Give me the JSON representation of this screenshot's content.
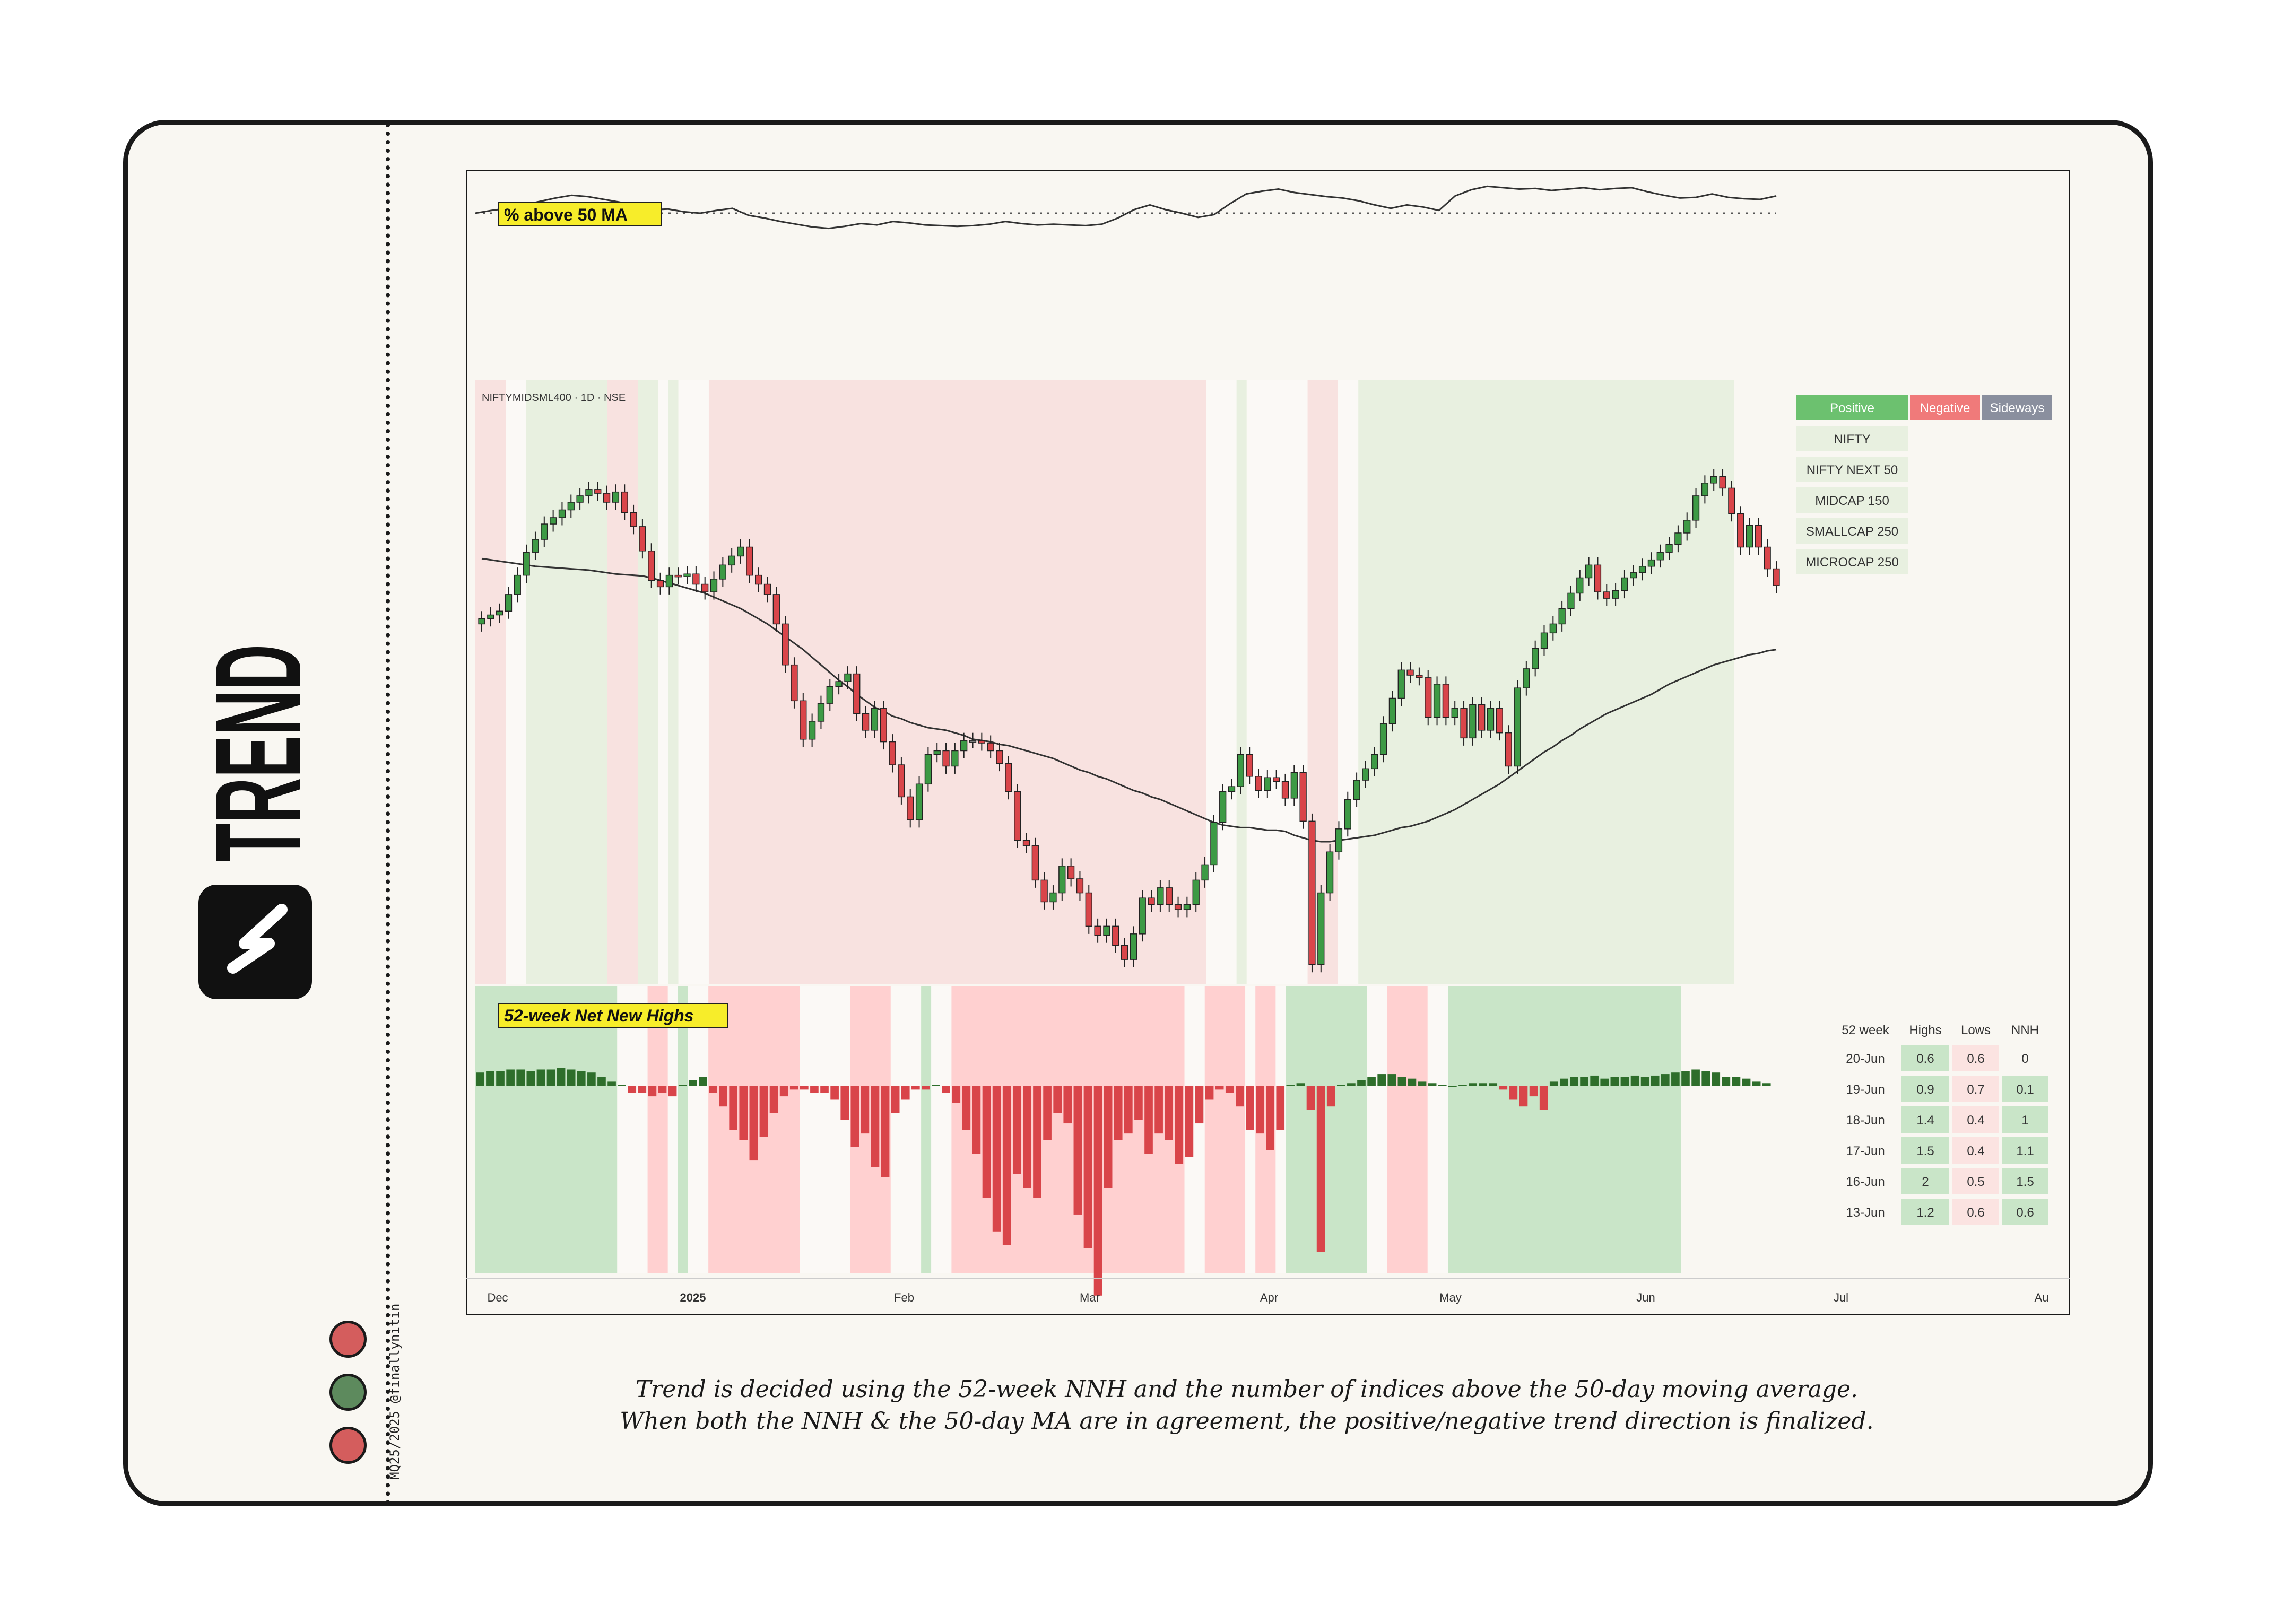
{
  "brand": {
    "word": "TREND"
  },
  "credit": "MQ25/2025 @finallynitin",
  "colors": {
    "up": "#3d9a45",
    "down": "#d9454a",
    "flat": "#ffffff",
    "bg_positive": "#e8f0e0",
    "bg_negative": "#f8e2e0",
    "nnh_positive": "#c9e5c8",
    "nnh_negative": "#ffd0d0",
    "nnh_bar_up": "#2e6e2b",
    "nnh_bar_down": "#d9454a",
    "dots": [
      "#d45d5d",
      "#5d8a5d",
      "#d45d5d"
    ]
  },
  "caption": {
    "line1": "Trend is decided using the 52-week NNH and the number of indices above the 50-day moving average.",
    "line2": "When both the NNH & the 50-day MA are in agreement, the positive/negative trend direction is finalized."
  },
  "chart_data": [
    {
      "type": "line",
      "title": "% above 50 MA",
      "y_domain": [
        0,
        100
      ],
      "reference_line": 50,
      "values": [
        50,
        54,
        57,
        62,
        67,
        72,
        76,
        74,
        70,
        66,
        60,
        55,
        56,
        52,
        50,
        54,
        57,
        47,
        43,
        38,
        34,
        30,
        28,
        31,
        35,
        33,
        38,
        36,
        33,
        32,
        31,
        32,
        34,
        38,
        35,
        33,
        34,
        33,
        32,
        34,
        43,
        55,
        62,
        55,
        50,
        44,
        48,
        64,
        78,
        82,
        85,
        80,
        77,
        74,
        72,
        68,
        62,
        57,
        62,
        59,
        54,
        75,
        84,
        89,
        87,
        85,
        86,
        83,
        85,
        87,
        84,
        86,
        87,
        81,
        76,
        72,
        73,
        78,
        73,
        71,
        70,
        75
      ]
    },
    {
      "type": "candlestick",
      "symbol": "NIFTYMIDSML400 · 1D · NSE",
      "x_tick_labels": [
        "Dec",
        "2025",
        "Feb",
        "Mar",
        "Apr",
        "May",
        "Jun",
        "Jul",
        "Au"
      ],
      "y_domain": [
        15800,
        20500
      ],
      "close": [
        18650,
        18680,
        18710,
        18840,
        18990,
        19170,
        19270,
        19390,
        19440,
        19500,
        19560,
        19610,
        19660,
        19630,
        19560,
        19640,
        19480,
        19370,
        19180,
        18950,
        18900,
        18990,
        18980,
        19000,
        18920,
        18860,
        18960,
        19070,
        19140,
        19210,
        18990,
        18920,
        18840,
        18610,
        18290,
        18010,
        17710,
        17850,
        17990,
        18120,
        18160,
        18220,
        17910,
        17780,
        17950,
        17690,
        17510,
        17260,
        17080,
        17360,
        17590,
        17620,
        17500,
        17620,
        17700,
        17700,
        17680,
        17620,
        17520,
        17300,
        16920,
        16880,
        16610,
        16440,
        16510,
        16720,
        16620,
        16510,
        16250,
        16180,
        16250,
        16100,
        15990,
        16190,
        16470,
        16420,
        16550,
        16420,
        16380,
        16420,
        16610,
        16730,
        17060,
        17300,
        17340,
        17590,
        17420,
        17310,
        17410,
        17380,
        17250,
        17450,
        17070,
        15950,
        16510,
        16830,
        17010,
        17240,
        17390,
        17480,
        17590,
        17830,
        18030,
        18250,
        18210,
        18190,
        17880,
        18140,
        17880,
        17950,
        17720,
        17980,
        17780,
        17950,
        17760,
        17500,
        18110,
        18260,
        18420,
        18540,
        18610,
        18730,
        18850,
        18970,
        19070,
        18860,
        18810,
        18870,
        18970,
        19010,
        19060,
        19110,
        19170,
        19230,
        19320,
        19420,
        19610,
        19710,
        19760,
        19670,
        19470,
        19210,
        19380,
        19210,
        19040,
        18910
      ],
      "moving_average_50": [
        19120,
        19110,
        19100,
        19090,
        19080,
        19070,
        19060,
        19055,
        19050,
        19045,
        19040,
        19035,
        19030,
        19020,
        19010,
        19000,
        18995,
        18990,
        18985,
        18970,
        18950,
        18930,
        18910,
        18890,
        18870,
        18850,
        18820,
        18790,
        18760,
        18730,
        18690,
        18650,
        18610,
        18560,
        18510,
        18460,
        18410,
        18350,
        18290,
        18230,
        18170,
        18120,
        18060,
        18010,
        17960,
        17930,
        17890,
        17870,
        17840,
        17820,
        17800,
        17790,
        17780,
        17760,
        17740,
        17710,
        17700,
        17690,
        17670,
        17660,
        17640,
        17620,
        17600,
        17580,
        17560,
        17530,
        17500,
        17470,
        17450,
        17420,
        17400,
        17370,
        17340,
        17310,
        17290,
        17260,
        17240,
        17210,
        17180,
        17150,
        17120,
        17090,
        17060,
        17040,
        17030,
        17020,
        17020,
        17010,
        17000,
        17000,
        16990,
        16960,
        16940,
        16920,
        16910,
        16910,
        16920,
        16930,
        16940,
        16950,
        16960,
        16980,
        17000,
        17020,
        17030,
        17050,
        17070,
        17100,
        17130,
        17160,
        17200,
        17240,
        17280,
        17320,
        17360,
        17410,
        17460,
        17510,
        17560,
        17610,
        17650,
        17700,
        17740,
        17790,
        17830,
        17870,
        17910,
        17940,
        17970,
        18000,
        18030,
        18060,
        18100,
        18140,
        18170,
        18200,
        18230,
        18260,
        18290,
        18310,
        18330,
        18350,
        18370,
        18380,
        18400,
        18410
      ],
      "regime_bands": [
        {
          "start": 0,
          "end": 3,
          "trend": "negative"
        },
        {
          "start": 3,
          "end": 5,
          "trend": "sideways"
        },
        {
          "start": 5,
          "end": 13,
          "trend": "positive"
        },
        {
          "start": 13,
          "end": 16,
          "trend": "negative"
        },
        {
          "start": 16,
          "end": 18,
          "trend": "positive"
        },
        {
          "start": 18,
          "end": 19,
          "trend": "sideways"
        },
        {
          "start": 19,
          "end": 20,
          "trend": "positive"
        },
        {
          "start": 20,
          "end": 23,
          "trend": "sideways"
        },
        {
          "start": 23,
          "end": 72,
          "trend": "negative"
        },
        {
          "start": 72,
          "end": 75,
          "trend": "sideways"
        },
        {
          "start": 75,
          "end": 76,
          "trend": "positive"
        },
        {
          "start": 76,
          "end": 82,
          "trend": "sideways"
        },
        {
          "start": 82,
          "end": 85,
          "trend": "negative"
        },
        {
          "start": 85,
          "end": 87,
          "trend": "sideways"
        },
        {
          "start": 87,
          "end": 124,
          "trend": "positive"
        }
      ],
      "legend": {
        "headers": [
          "Positive",
          "Negative",
          "Sideways"
        ],
        "header_colors": [
          "#6cc16f",
          "#f07a7a",
          "#8a8f9e"
        ],
        "indices": [
          {
            "name": "NIFTY",
            "trend": "positive"
          },
          {
            "name": "NIFTY NEXT 50",
            "trend": "positive"
          },
          {
            "name": "MIDCAP 150",
            "trend": "positive"
          },
          {
            "name": "SMALLCAP 250",
            "trend": "positive"
          },
          {
            "name": "MICROCAP 250",
            "trend": "positive"
          }
        ]
      }
    },
    {
      "type": "bar",
      "title": "52-week Net New Highs",
      "values": [
        0.9,
        1.0,
        1.0,
        1.1,
        1.1,
        1.0,
        1.1,
        1.1,
        1.2,
        1.1,
        1.0,
        0.9,
        0.6,
        0.3,
        0.1,
        -0.2,
        -0.2,
        -0.3,
        -0.2,
        -0.3,
        0.1,
        0.4,
        0.6,
        -0.2,
        -0.6,
        -1.3,
        -1.6,
        -2.2,
        -1.5,
        -0.8,
        -0.3,
        -0.1,
        -0.1,
        -0.2,
        -0.2,
        -0.4,
        -1.0,
        -1.8,
        -1.4,
        -2.4,
        -2.7,
        -0.8,
        -0.4,
        -0.1,
        -0.1,
        0.1,
        -0.2,
        -0.5,
        -1.3,
        -2.0,
        -3.3,
        -4.3,
        -4.7,
        -2.6,
        -3.0,
        -3.3,
        -1.6,
        -0.8,
        -1.1,
        -3.8,
        -4.8,
        -6.2,
        -3.0,
        -1.6,
        -1.4,
        -1.0,
        -2.0,
        -1.4,
        -1.6,
        -2.3,
        -2.1,
        -1.1,
        -0.4,
        -0.1,
        -0.2,
        -0.6,
        -1.3,
        -1.4,
        -1.9,
        -1.3,
        0.1,
        0.2,
        -0.7,
        -4.9,
        -0.6,
        0.1,
        0.2,
        0.4,
        0.6,
        0.8,
        0.8,
        0.6,
        0.5,
        0.3,
        0.2,
        0.1,
        0.0,
        0.1,
        0.2,
        0.2,
        0.2,
        -0.1,
        -0.4,
        -0.6,
        -0.3,
        -0.7,
        0.3,
        0.5,
        0.6,
        0.6,
        0.7,
        0.5,
        0.6,
        0.6,
        0.7,
        0.6,
        0.7,
        0.8,
        0.9,
        1.0,
        1.1,
        1.0,
        0.9,
        0.6,
        0.6,
        0.5,
        0.3,
        0.2
      ],
      "y_domain": [
        -6.6,
        1.3
      ],
      "regime_bands": [
        {
          "start": 0,
          "end": 14,
          "trend": "positive"
        },
        {
          "start": 14,
          "end": 17,
          "trend": "sideways"
        },
        {
          "start": 17,
          "end": 19,
          "trend": "negative"
        },
        {
          "start": 19,
          "end": 20,
          "trend": "sideways"
        },
        {
          "start": 20,
          "end": 21,
          "trend": "positive"
        },
        {
          "start": 21,
          "end": 23,
          "trend": "sideways"
        },
        {
          "start": 23,
          "end": 32,
          "trend": "negative"
        },
        {
          "start": 32,
          "end": 37,
          "trend": "sideways"
        },
        {
          "start": 37,
          "end": 41,
          "trend": "negative"
        },
        {
          "start": 41,
          "end": 44,
          "trend": "sideways"
        },
        {
          "start": 44,
          "end": 45,
          "trend": "positive"
        },
        {
          "start": 45,
          "end": 47,
          "trend": "sideways"
        },
        {
          "start": 47,
          "end": 70,
          "trend": "negative"
        },
        {
          "start": 70,
          "end": 72,
          "trend": "sideways"
        },
        {
          "start": 72,
          "end": 76,
          "trend": "negative"
        },
        {
          "start": 76,
          "end": 77,
          "trend": "sideways"
        },
        {
          "start": 77,
          "end": 79,
          "trend": "negative"
        },
        {
          "start": 79,
          "end": 80,
          "trend": "sideways"
        },
        {
          "start": 80,
          "end": 88,
          "trend": "positive"
        },
        {
          "start": 88,
          "end": 90,
          "trend": "sideways"
        },
        {
          "start": 90,
          "end": 94,
          "trend": "negative"
        },
        {
          "start": 94,
          "end": 96,
          "trend": "sideways"
        },
        {
          "start": 96,
          "end": 119,
          "trend": "positive"
        }
      ],
      "table": {
        "headers": [
          "52 week",
          "Highs",
          "Lows",
          "NNH"
        ],
        "rows": [
          [
            "20-Jun",
            "0.6",
            "0.6",
            "0"
          ],
          [
            "19-Jun",
            "0.9",
            "0.7",
            "0.1"
          ],
          [
            "18-Jun",
            "1.4",
            "0.4",
            "1"
          ],
          [
            "17-Jun",
            "1.5",
            "0.4",
            "1.1"
          ],
          [
            "16-Jun",
            "2",
            "0.5",
            "1.5"
          ],
          [
            "13-Jun",
            "1.2",
            "0.6",
            "0.6"
          ]
        ]
      }
    }
  ]
}
